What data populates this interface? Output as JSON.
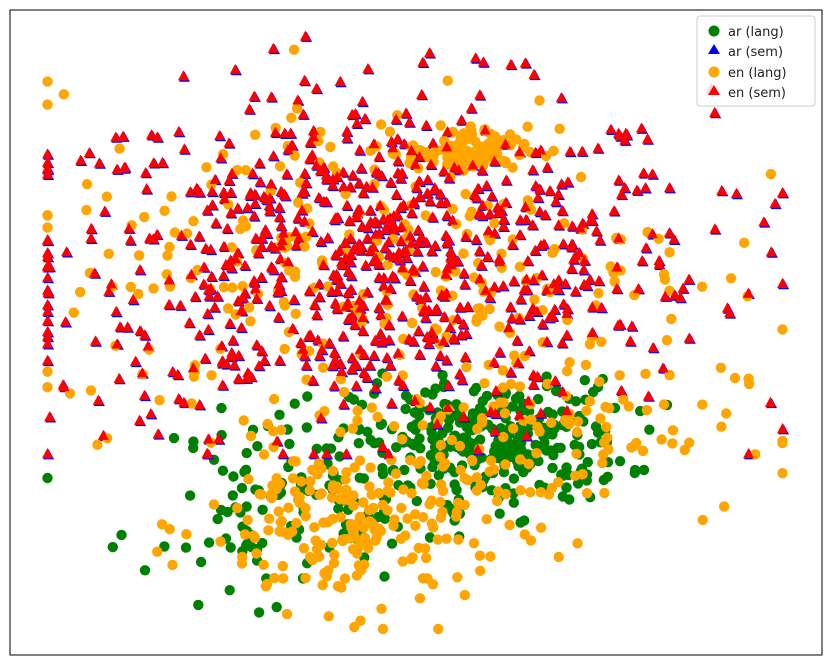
{
  "chart_data": {
    "type": "scatter",
    "title": "",
    "xlabel": "",
    "ylabel": "",
    "xlim": [
      0,
      100
    ],
    "ylim": [
      0,
      100
    ],
    "grid": false,
    "axis_ticks": false,
    "legend": {
      "placement": "top-right",
      "entries": [
        "ar (lang)",
        "ar (sem)",
        "en (lang)",
        "en (sem)"
      ]
    },
    "series": [
      {
        "name": "ar (lang)",
        "marker": "circle",
        "color": "#008000",
        "points": 430,
        "region_note": "dense cluster lower-center-right",
        "clusters": [
          {
            "cx": 60,
            "cy": 32,
            "sx": 9,
            "sy": 5,
            "n": 300
          },
          {
            "cx": 38,
            "cy": 25,
            "sx": 10,
            "sy": 6,
            "n": 80
          },
          {
            "cx": 30,
            "cy": 18,
            "sx": 8,
            "sy": 6,
            "n": 50
          }
        ]
      },
      {
        "name": "ar (sem)",
        "marker": "triangle",
        "color": "#0000ff",
        "points": 760,
        "clusters": [
          {
            "cx": 45,
            "cy": 62,
            "sx": 22,
            "sy": 14,
            "n": 760
          }
        ]
      },
      {
        "name": "en (lang)",
        "marker": "circle",
        "color": "#ffa500",
        "points": 700,
        "clusters": [
          {
            "cx": 42,
            "cy": 18,
            "sx": 10,
            "sy": 7,
            "n": 220
          },
          {
            "cx": 65,
            "cy": 34,
            "sx": 14,
            "sy": 7,
            "n": 120
          },
          {
            "cx": 57,
            "cy": 80,
            "sx": 4,
            "sy": 2,
            "n": 90
          },
          {
            "cx": 45,
            "cy": 62,
            "sx": 22,
            "sy": 14,
            "n": 270
          }
        ]
      },
      {
        "name": "en (sem)",
        "marker": "triangle",
        "color": "#ff0000",
        "points": 760,
        "clusters": [
          {
            "cx": 45,
            "cy": 62,
            "sx": 22,
            "sy": 14,
            "n": 760
          }
        ]
      }
    ]
  }
}
